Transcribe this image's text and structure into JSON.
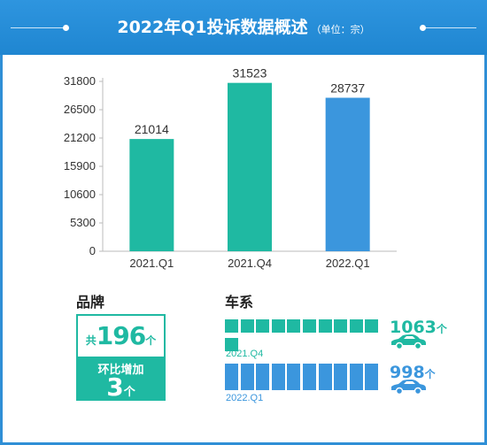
{
  "header": {
    "title": "2022年Q1投诉数据概述",
    "unit": "（单位：宗）"
  },
  "chart_data": {
    "type": "bar",
    "categories": [
      "2021.Q1",
      "2021.Q4",
      "2022.Q1"
    ],
    "values": [
      21014,
      31523,
      28737
    ],
    "bar_colors": [
      "#1fb9a2",
      "#1fb9a2",
      "#3b96dd"
    ],
    "yticks": [
      0,
      5300,
      10600,
      15900,
      21200,
      26500,
      31800
    ],
    "ylim": [
      0,
      31800
    ],
    "grid": false,
    "title": "",
    "xlabel": "",
    "ylabel": ""
  },
  "brand": {
    "title": "品牌",
    "count_prefix": "共",
    "count": "196",
    "count_suffix": "个",
    "growth_label": "环比增加",
    "growth_value": "3",
    "growth_suffix": "个",
    "color": "#1fb9a2"
  },
  "series": {
    "title": "车系",
    "rows": [
      {
        "label": "2021.Q4",
        "count": "1063",
        "suffix": "个",
        "value": 1063,
        "color": "#1fb9a2",
        "icon": "car-icon"
      },
      {
        "label": "2022.Q1",
        "count": "998",
        "suffix": "个",
        "value": 998,
        "color": "#3b96dd",
        "icon": "car-icon"
      }
    ]
  }
}
